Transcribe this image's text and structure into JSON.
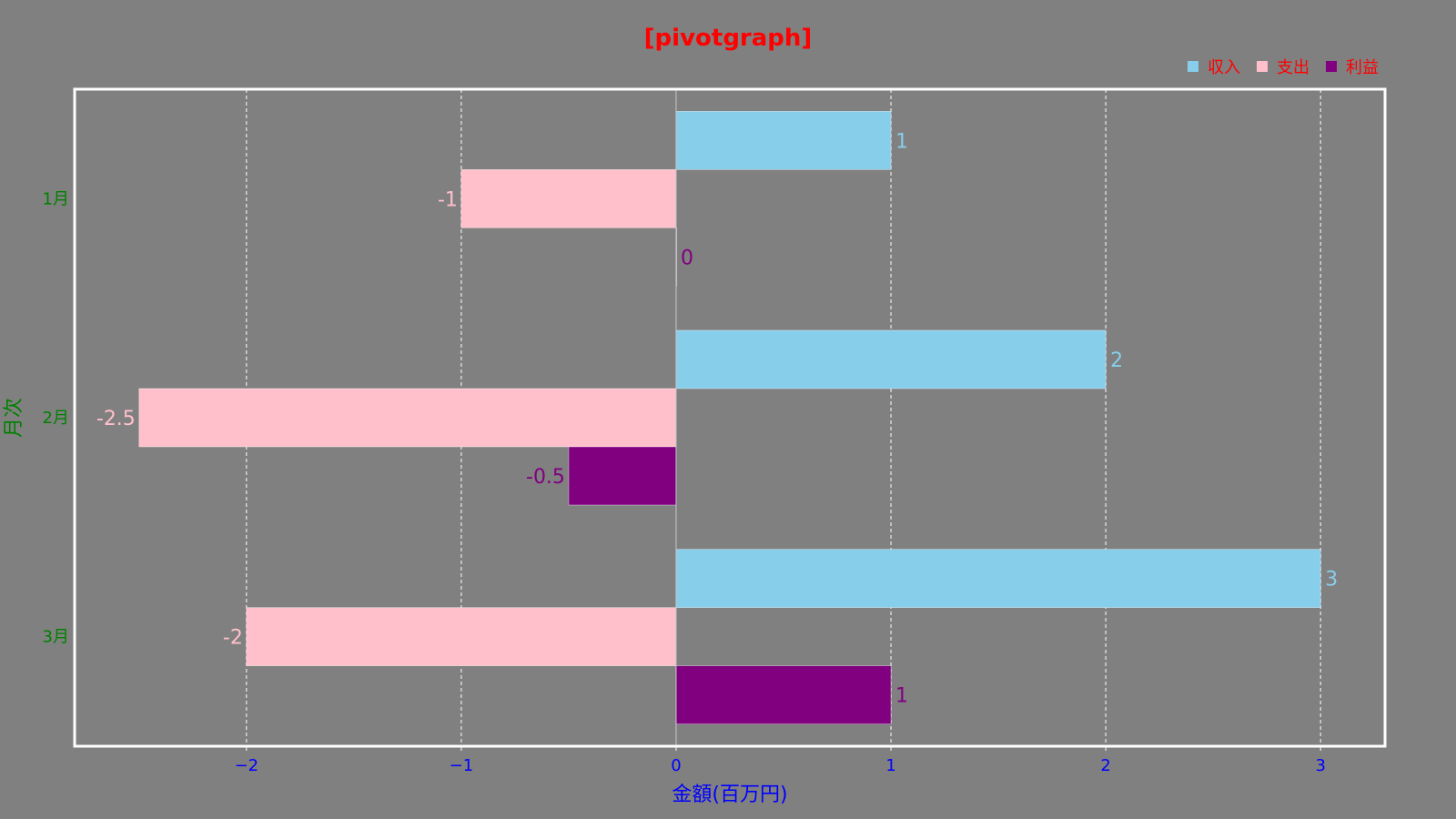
{
  "colors": {
    "background": "#808080",
    "title": "#ff0000",
    "legend_text": "#ff0000",
    "x_axis": "#0000ff",
    "y_axis": "#008000",
    "frame": "#ffffff",
    "grid": "#ffffff"
  },
  "chart_data": {
    "type": "bar",
    "orientation": "horizontal",
    "title": "[pivotgraph]",
    "xlabel": "金額(百万円)",
    "ylabel": "月次",
    "categories": [
      "1月",
      "2月",
      "3月"
    ],
    "series": [
      {
        "name": "収入",
        "color": "#87ceeb",
        "values": [
          1,
          2,
          3
        ]
      },
      {
        "name": "支出",
        "color": "#ffc0cb",
        "values": [
          -1,
          -2.5,
          -2
        ]
      },
      {
        "name": "利益",
        "color": "#800080",
        "values": [
          0,
          -0.5,
          1
        ]
      }
    ],
    "xlim": [
      -2.8,
      3.3
    ],
    "xticks": [
      -2,
      -1,
      0,
      1,
      2,
      3
    ],
    "xtick_labels": [
      "−2",
      "−1",
      "0",
      "1",
      "2",
      "3"
    ],
    "grid": "vertical dashed",
    "legend_position": "top-right"
  }
}
